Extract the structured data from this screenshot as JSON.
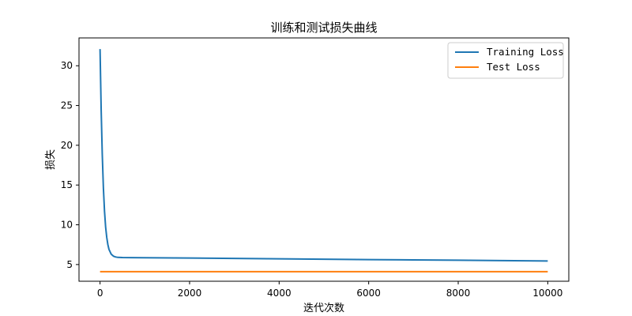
{
  "chart_data": {
    "type": "line",
    "title": "训练和测试损失曲线",
    "xlabel": "迭代次数",
    "ylabel": "损失",
    "xlim": [
      -470,
      10470
    ],
    "ylim": [
      2.9,
      33.5
    ],
    "xticks": [
      0,
      2000,
      4000,
      6000,
      8000,
      10000
    ],
    "yticks": [
      5,
      10,
      15,
      20,
      25,
      30
    ],
    "grid": false,
    "legend_position": "top-right",
    "series": [
      {
        "name": "Training Loss",
        "color": "#1f77b4",
        "x": [
          0,
          25,
          50,
          75,
          100,
          125,
          150,
          175,
          200,
          250,
          300,
          350,
          400,
          500,
          700,
          1000,
          2000,
          3000,
          4000,
          5000,
          6000,
          7000,
          8000,
          9000,
          10000
        ],
        "y": [
          32.1,
          24.5,
          18.8,
          14.6,
          11.7,
          9.7,
          8.4,
          7.5,
          6.9,
          6.3,
          6.05,
          5.95,
          5.9,
          5.88,
          5.87,
          5.86,
          5.82,
          5.77,
          5.72,
          5.67,
          5.62,
          5.58,
          5.54,
          5.49,
          5.44
        ]
      },
      {
        "name": "Test Loss",
        "color": "#ff7f0e",
        "x": [
          0,
          10000
        ],
        "y": [
          4.1,
          4.1
        ]
      }
    ]
  }
}
